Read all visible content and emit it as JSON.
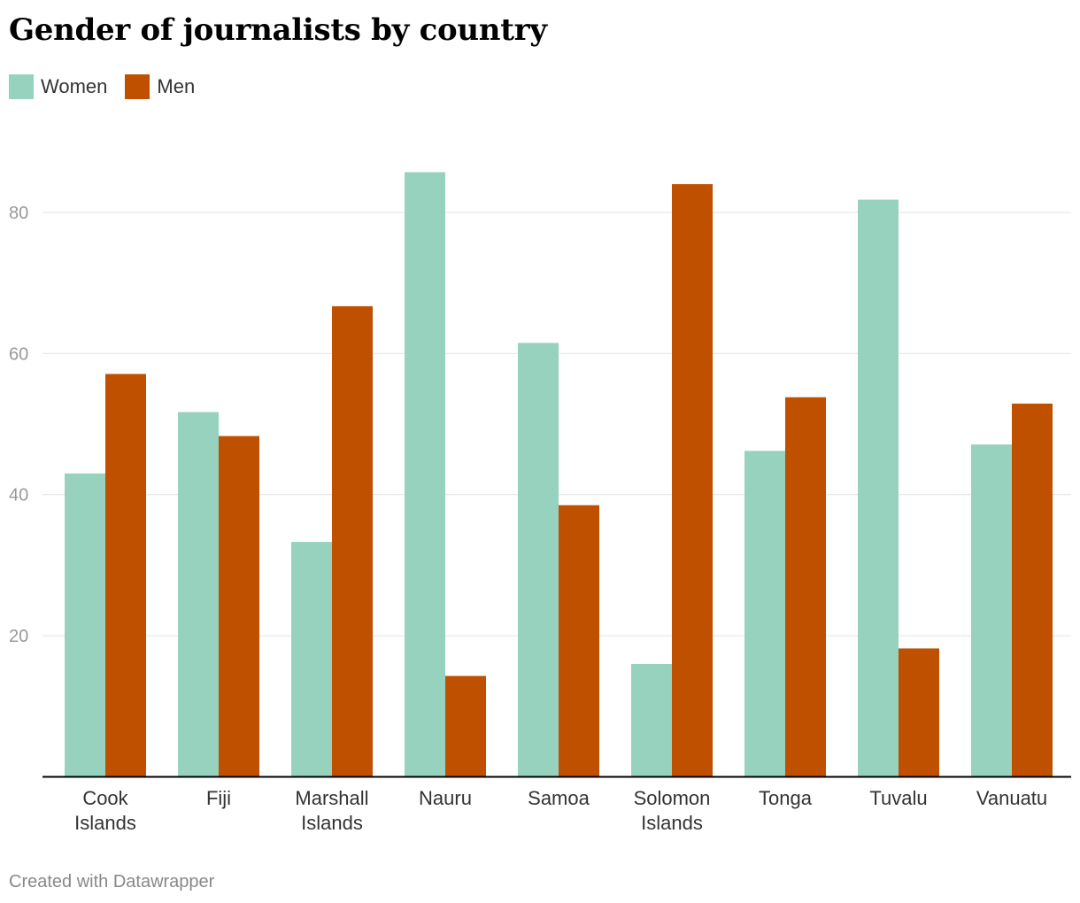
{
  "chart_data": {
    "type": "bar",
    "title": "Gender of journalists by country",
    "xlabel": "",
    "ylabel": "",
    "categories": [
      [
        "Cook",
        "Islands"
      ],
      [
        "Fiji"
      ],
      [
        "Marshall",
        "Islands"
      ],
      [
        "Nauru"
      ],
      [
        "Samoa"
      ],
      [
        "Solomon",
        "Islands"
      ],
      [
        "Tonga"
      ],
      [
        "Tuvalu"
      ],
      [
        "Vanuatu"
      ]
    ],
    "series": [
      {
        "name": "Women",
        "color": "#96d2be",
        "values": [
          43.0,
          51.7,
          33.3,
          85.7,
          61.5,
          16.0,
          46.2,
          81.8,
          47.1
        ]
      },
      {
        "name": "Men",
        "color": "#bf5000",
        "values": [
          57.1,
          48.3,
          66.7,
          14.3,
          38.5,
          84.0,
          53.8,
          18.2,
          52.9
        ]
      }
    ],
    "ylim": [
      0,
      100
    ],
    "yticks": [
      20,
      40,
      60,
      80
    ],
    "grid": true,
    "legend_position": "top-left"
  },
  "footer": {
    "credit": "Created with Datawrapper"
  }
}
